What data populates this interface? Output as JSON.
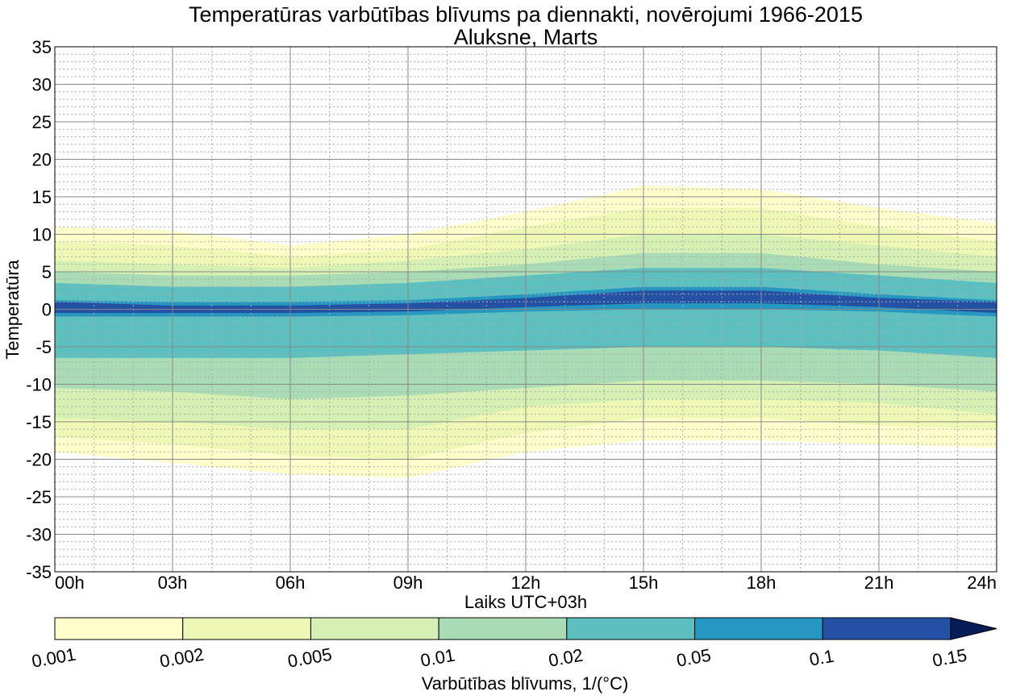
{
  "chart_data": {
    "type": "contourf",
    "title": "Temperatūras varbūtības blīvums pa diennakti, novērojumi 1966-2015",
    "subtitle": "Aluksne, Marts",
    "xlabel": "Laiks UTC+03h",
    "ylabel": "Temperatūra",
    "x_ticks": [
      "00h",
      "03h",
      "06h",
      "09h",
      "12h",
      "15h",
      "18h",
      "21h",
      "24h"
    ],
    "x_range_hours": [
      0,
      24
    ],
    "y_ticks": [
      35,
      30,
      25,
      20,
      15,
      10,
      5,
      0,
      -5,
      -10,
      -15,
      -20,
      -25,
      -30,
      -35
    ],
    "y_range": [
      -35,
      35
    ],
    "grid": true,
    "colorbar": {
      "label": "Varbūtības blīvums, 1/(°C)",
      "levels": [
        0.001,
        0.002,
        0.005,
        0.01,
        0.02,
        0.05,
        0.1,
        0.15
      ],
      "tick_labels": [
        "0.001",
        "0.002",
        "0.005",
        "0.01",
        "0.02",
        "0.05",
        "0.1",
        "0.15"
      ],
      "colors": [
        "#ffffcc",
        "#eef8b4",
        "#d6efb3",
        "#a9dcb5",
        "#5cc0c0",
        "#2597c1",
        "#2451a4",
        "#081d58"
      ],
      "extend": "max"
    },
    "band_boundaries": {
      "hours": [
        0,
        3,
        6,
        9,
        12,
        15,
        18,
        21,
        24
      ],
      "upper": [
        [
          11,
          10.5,
          8.5,
          10,
          13,
          16.5,
          16,
          13.5,
          11.5
        ],
        [
          9,
          8.5,
          7,
          8,
          11,
          13.5,
          13.5,
          11,
          9
        ],
        [
          6.5,
          6,
          5.5,
          6.5,
          8,
          10,
          10,
          8.5,
          7
        ],
        [
          5,
          4.5,
          4.5,
          5,
          6,
          7.5,
          7.5,
          6,
          5
        ],
        [
          3.5,
          3,
          3,
          3.5,
          4.5,
          5.5,
          5.5,
          4.5,
          3.5
        ],
        [
          1.2,
          1,
          1,
          1.2,
          2,
          3,
          3,
          2,
          1.2
        ],
        [
          1,
          0.5,
          0.5,
          0.8,
          1.5,
          2.5,
          2.5,
          1.5,
          1
        ]
      ],
      "lower": [
        [
          -19,
          -20.5,
          -22,
          -22.5,
          -19,
          -17.5,
          -17.5,
          -18,
          -18.5
        ],
        [
          -17,
          -18,
          -19.5,
          -20,
          -16.5,
          -14.5,
          -14.5,
          -15.5,
          -16
        ],
        [
          -14.5,
          -15,
          -16,
          -16,
          -13,
          -12,
          -12,
          -12.5,
          -14
        ],
        [
          -10.5,
          -11,
          -12,
          -11.5,
          -10.5,
          -9.5,
          -9.5,
          -10,
          -11
        ],
        [
          -6.5,
          -6.5,
          -6.5,
          -6,
          -5.5,
          -5,
          -5,
          -5.5,
          -6.5
        ],
        [
          -1,
          -1,
          -1,
          -0.8,
          -0.3,
          0,
          0,
          -0.3,
          -1
        ],
        [
          -0.5,
          -0.5,
          -0.5,
          -0.3,
          0.3,
          0.8,
          0.8,
          0.3,
          -0.5
        ]
      ]
    }
  }
}
